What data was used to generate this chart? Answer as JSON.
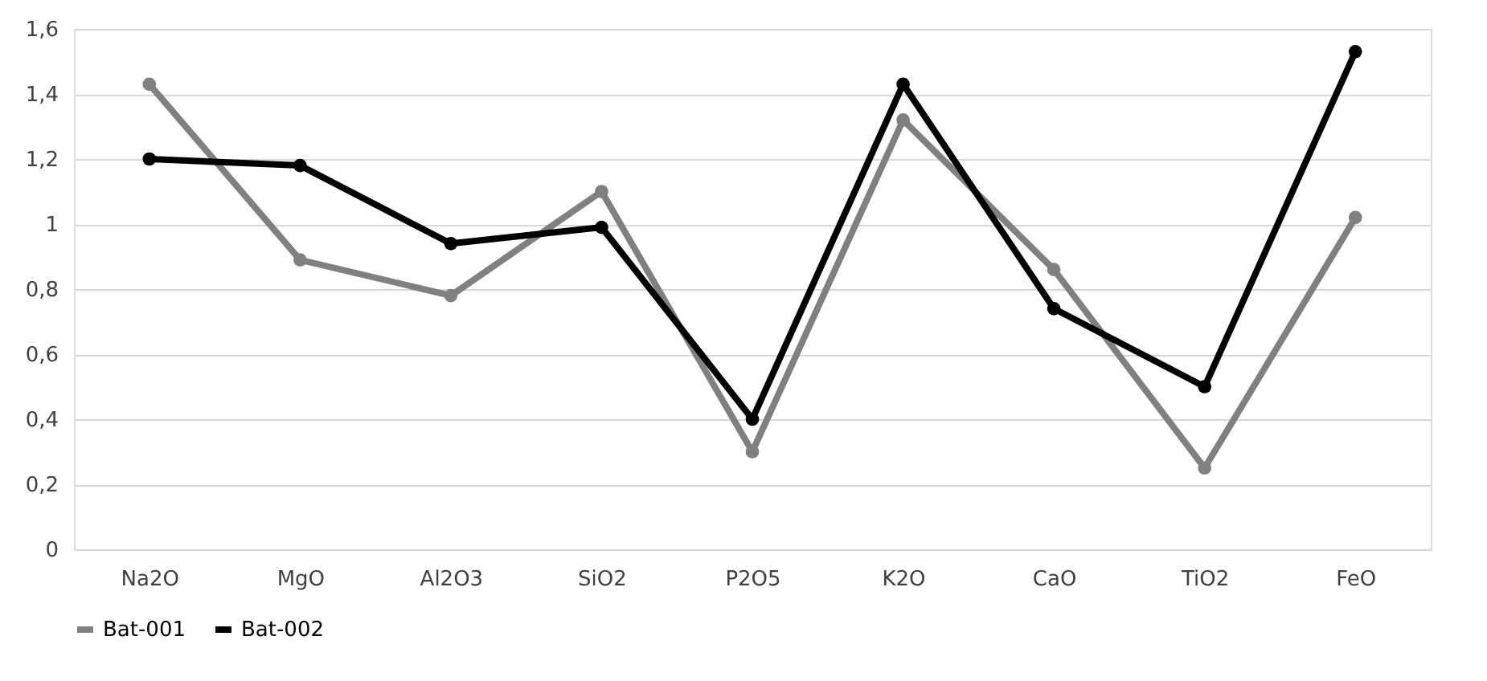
{
  "chart_data": {
    "type": "line",
    "categories": [
      "Na2O",
      "MgO",
      "Al2O3",
      "SiO2",
      "P2O5",
      "K2O",
      "CaO",
      "TiO2",
      "FeO"
    ],
    "series": [
      {
        "name": "Bat-001",
        "color": "#808080",
        "values": [
          1.43,
          0.89,
          0.78,
          1.1,
          0.3,
          1.32,
          0.86,
          0.25,
          1.02
        ]
      },
      {
        "name": "Bat-002",
        "color": "#000000",
        "values": [
          1.2,
          1.18,
          0.94,
          0.99,
          0.4,
          1.43,
          0.74,
          0.5,
          1.53
        ]
      }
    ],
    "ylim": [
      0,
      1.6
    ],
    "yticks": [
      0,
      {
        "value": 0.2,
        "label": "0,2"
      },
      {
        "value": 0.4,
        "label": "0,4"
      },
      {
        "value": 0.6,
        "label": "0,6"
      },
      {
        "value": 0.8,
        "label": "0,8"
      },
      1,
      {
        "value": 1.2,
        "label": "1,2"
      },
      {
        "value": 1.4,
        "label": "1,4"
      },
      {
        "value": 1.6,
        "label": "1,6"
      }
    ],
    "grid": "y",
    "legend": "bottom",
    "marker": "circle",
    "line_style": "solid"
  }
}
